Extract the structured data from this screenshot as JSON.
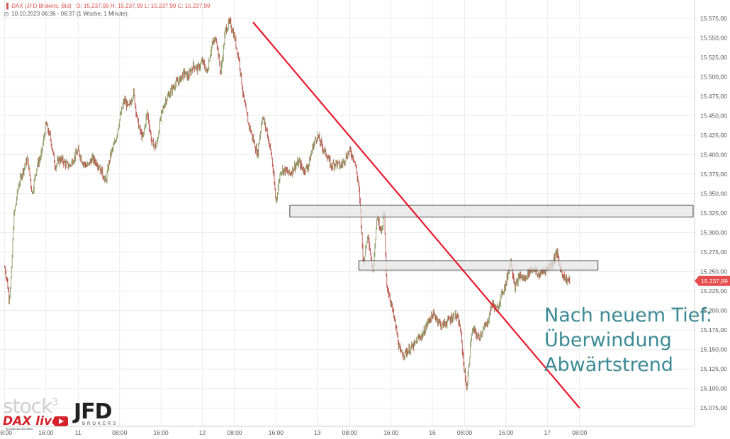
{
  "header": {
    "symbol_icon": "bar-chart-icon",
    "clock_icon": "clock-icon",
    "line1_title": "DAX (JFD Brokers, Bid)",
    "line1_ohlc": "O: 15.237,99   H: 15.237,99   L: 15.237,99   C: 15.237,99",
    "line2": "10.10.2023 06:36 - 06:37    (1 Woche, 1 Minute)"
  },
  "annotation": {
    "line1": "Nach neuem Tief:",
    "line2": "Überwindung",
    "line3": "Abwärtstrend"
  },
  "logos": {
    "stock3": "stock",
    "stock3_sup": "3",
    "daxlive": "DAX live",
    "daxlive_sub": "by Andreas Bernstein",
    "jfd": "JFD",
    "jfd_sub": "BROKERS"
  },
  "colors": {
    "candle": "#b4453a",
    "candle_up": "#7d8f4f",
    "trendline": "#e8192c",
    "zone_fill": "#e6e6e6",
    "zone_stroke": "#444444",
    "price_tag": "#e74c4c",
    "grid": "#ececec",
    "axis_text": "#555555",
    "annotation": "#3c8a95"
  },
  "chart_data": {
    "type": "line",
    "ylim": [
      15062.5,
      15587.5
    ],
    "yticks": [
      15075,
      15100,
      15125,
      15150,
      15175,
      15200,
      15225,
      15250,
      15275,
      15300,
      15325,
      15350,
      15375,
      15400,
      15425,
      15450,
      15475,
      15500,
      15525,
      15550,
      15575
    ],
    "ytick_labels": [
      "15.075,00",
      "15.100,00",
      "15.125,00",
      "15.150,00",
      "15.175,00",
      "15.200,00",
      "15.225,00",
      "15.250,00",
      "15.275,00",
      "15.300,00",
      "15.325,00",
      "15.350,00",
      "15.375,00",
      "15.400,00",
      "15.425,00",
      "15.450,00",
      "15.475,00",
      "15.500,00",
      "15.525,00",
      "15.550,00",
      "15.575,00"
    ],
    "xticks": [
      0,
      9,
      16,
      25,
      34,
      43,
      50,
      59,
      68,
      75,
      84,
      93,
      100,
      109,
      118,
      125
    ],
    "xtick_labels": [
      "08:00",
      "16:00",
      "11",
      "08:00",
      "16:00",
      "12",
      "08:00",
      "16:00",
      "13",
      "08:00",
      "16:00",
      "16",
      "08:00",
      "16:00",
      "17",
      "08:00"
    ],
    "xlim": [
      -1,
      150
    ],
    "last_price": 15237.99,
    "last_price_label": "15.237,99",
    "series": [
      {
        "x": [
          0,
          0.5,
          1,
          1.5,
          2,
          3,
          4,
          5,
          6,
          7,
          8,
          9,
          10,
          11,
          12,
          13,
          14,
          15,
          16,
          17,
          18,
          19,
          20,
          21,
          22,
          23,
          24,
          25,
          26,
          27,
          28,
          29,
          30,
          31,
          32,
          33,
          34,
          35,
          36,
          37,
          38,
          39,
          40,
          41,
          42,
          43,
          44,
          45,
          46,
          47,
          48,
          49,
          50,
          51,
          52,
          53,
          54,
          55,
          56,
          57,
          58,
          59,
          60,
          61,
          62,
          63,
          64,
          65,
          66,
          67,
          68,
          69,
          70,
          71,
          72,
          73,
          74,
          75,
          76,
          77,
          78,
          79,
          80,
          81,
          82,
          82.5,
          83,
          84,
          85,
          86,
          87,
          88,
          89,
          90,
          91,
          92,
          93,
          94,
          95,
          96,
          97,
          98,
          99,
          100,
          100.5,
          101,
          101.5,
          102,
          103,
          104,
          105,
          106,
          107,
          108,
          109,
          110,
          111,
          112,
          113,
          114,
          115,
          116,
          117,
          118,
          119,
          120,
          121,
          122,
          123
        ],
        "y": [
          15255,
          15240,
          15215,
          15250,
          15320,
          15360,
          15380,
          15395,
          15350,
          15385,
          15400,
          15440,
          15420,
          15385,
          15395,
          15390,
          15385,
          15395,
          15405,
          15390,
          15385,
          15395,
          15390,
          15380,
          15365,
          15400,
          15415,
          15445,
          15470,
          15460,
          15480,
          15440,
          15420,
          15455,
          15415,
          15410,
          15450,
          15470,
          15480,
          15490,
          15495,
          15505,
          15500,
          15515,
          15510,
          15520,
          15505,
          15540,
          15550,
          15505,
          15560,
          15570,
          15550,
          15520,
          15470,
          15440,
          15420,
          15400,
          15450,
          15430,
          15400,
          15340,
          15380,
          15380,
          15375,
          15385,
          15390,
          15380,
          15385,
          15410,
          15425,
          15410,
          15400,
          15385,
          15390,
          15385,
          15395,
          15405,
          15395,
          15360,
          15260,
          15300,
          15250,
          15320,
          15300,
          15330,
          15235,
          15210,
          15180,
          15145,
          15145,
          15150,
          15155,
          15165,
          15170,
          15185,
          15195,
          15190,
          15180,
          15185,
          15190,
          15195,
          15180,
          15120,
          15100,
          15135,
          15170,
          15175,
          15165,
          15175,
          15185,
          15210,
          15200,
          15220,
          15235,
          15265,
          15230,
          15245,
          15240,
          15250,
          15255,
          15245,
          15250,
          15255,
          15260,
          15275,
          15250,
          15240,
          15238
        ]
      }
    ],
    "trendline": {
      "x": [
        54,
        125
      ],
      "y": [
        15570,
        15075
      ]
    },
    "zones": [
      {
        "x": [
          62,
          150
        ],
        "y": [
          15320,
          15335
        ]
      },
      {
        "x": [
          77,
          129
        ],
        "y": [
          15252,
          15264
        ]
      }
    ]
  }
}
